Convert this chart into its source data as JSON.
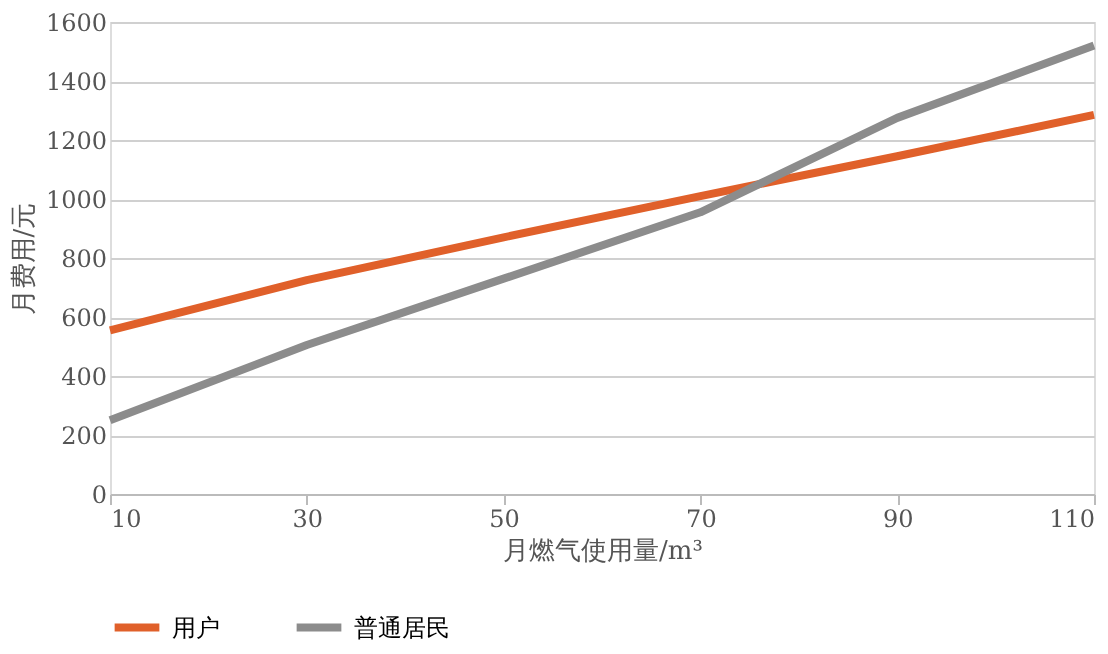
{
  "chart_data": {
    "type": "line",
    "xlabel": "月燃气使用量/m³",
    "ylabel": "月费用/元",
    "x": [
      10,
      30,
      50,
      70,
      90,
      110
    ],
    "series": [
      {
        "name": "用户",
        "color": "#e0602a",
        "values": [
          555,
          725,
          870,
          1010,
          1145,
          1285
        ]
      },
      {
        "name": "普通居民",
        "color": "#8c8c8c",
        "values": [
          250,
          505,
          730,
          955,
          1275,
          1520
        ]
      }
    ],
    "xlim": [
      10,
      110
    ],
    "xticks": [
      10,
      30,
      50,
      70,
      90,
      110
    ],
    "ylim": [
      0,
      1600
    ],
    "yticks": [
      0,
      200,
      400,
      600,
      800,
      1000,
      1200,
      1400,
      1600
    ],
    "grid": "y",
    "legend": "bottom",
    "marker": "none",
    "line_style": "solid"
  }
}
